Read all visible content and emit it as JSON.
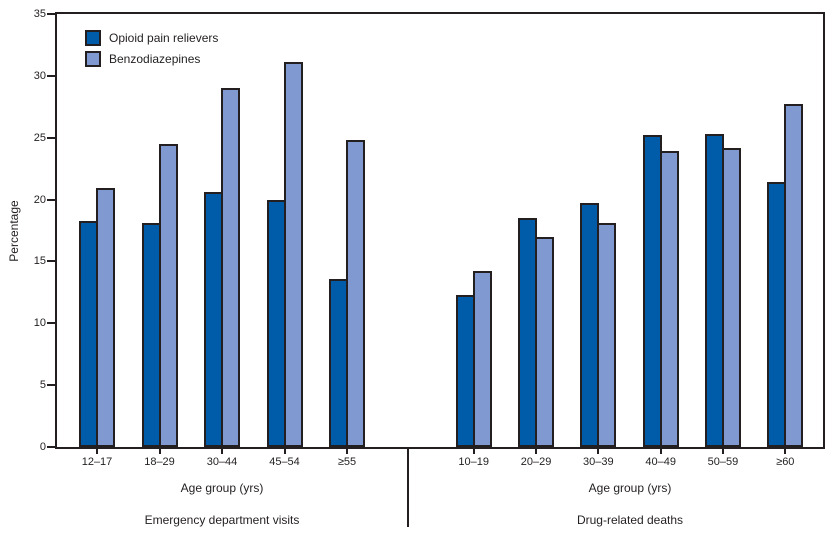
{
  "chart_data": {
    "type": "bar",
    "title": "",
    "ylabel": "Percentage",
    "ylim": [
      0,
      35
    ],
    "yticks": [
      0,
      5,
      10,
      15,
      20,
      25,
      30,
      35
    ],
    "grid": false,
    "legend_position": "top-left-inside",
    "legend": [
      {
        "name": "Opioid pain relievers",
        "color": "#005CA9"
      },
      {
        "name": "Benzodiazepines",
        "color": "#8099D0"
      }
    ],
    "outline_color": "#231F20",
    "panels": [
      {
        "caption": "Emergency department visits",
        "xlabel": "Age group (yrs)",
        "categories": [
          "12–17",
          "18–29",
          "30–44",
          "45–54",
          "≥55"
        ],
        "series": [
          {
            "name": "Opioid pain relievers",
            "values": [
              18.3,
              18.1,
              20.6,
              20.0,
              13.6
            ]
          },
          {
            "name": "Benzodiazepines",
            "values": [
              20.9,
              24.5,
              29.0,
              31.1,
              24.8
            ]
          }
        ]
      },
      {
        "caption": "Drug-related deaths",
        "xlabel": "Age group (yrs)",
        "categories": [
          "10–19",
          "20–29",
          "30–39",
          "40–49",
          "50–59",
          "≥60"
        ],
        "series": [
          {
            "name": "Opioid pain relievers",
            "values": [
              12.3,
              18.5,
              19.7,
              25.2,
              25.3,
              21.4
            ]
          },
          {
            "name": "Benzodiazepines",
            "values": [
              14.2,
              17.0,
              18.1,
              23.9,
              24.2,
              27.7
            ]
          }
        ]
      }
    ]
  }
}
